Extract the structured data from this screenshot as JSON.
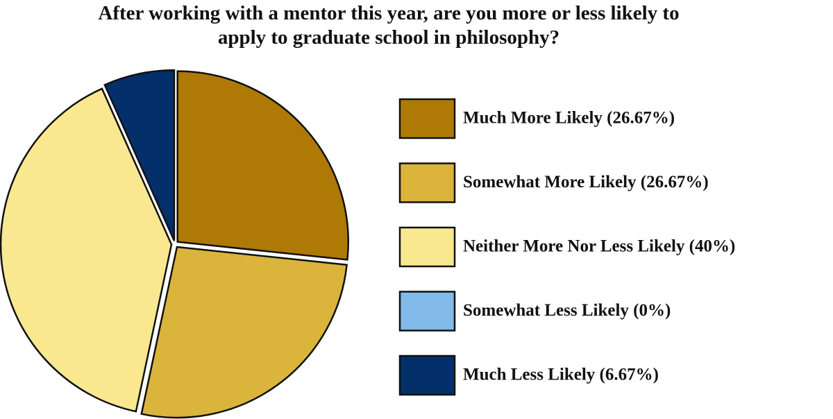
{
  "chart_data": {
    "type": "pie",
    "title": "After working with a mentor this year, are you more or less likely to apply to graduate school in philosophy?",
    "categories": [
      "Much More Likely (26.67%)",
      "Somewhat More Likely (26.67%)",
      "Neither More Nor Less Likely (40%)",
      "Somewhat Less Likely (0%)",
      "Much Less Likely (6.67%)"
    ],
    "values": [
      26.67,
      26.67,
      40,
      0,
      6.67
    ],
    "colors": [
      "#ae7a05",
      "#dbb43c",
      "#f9e88f",
      "#82bbea",
      "#03306a"
    ],
    "legend": "right"
  }
}
